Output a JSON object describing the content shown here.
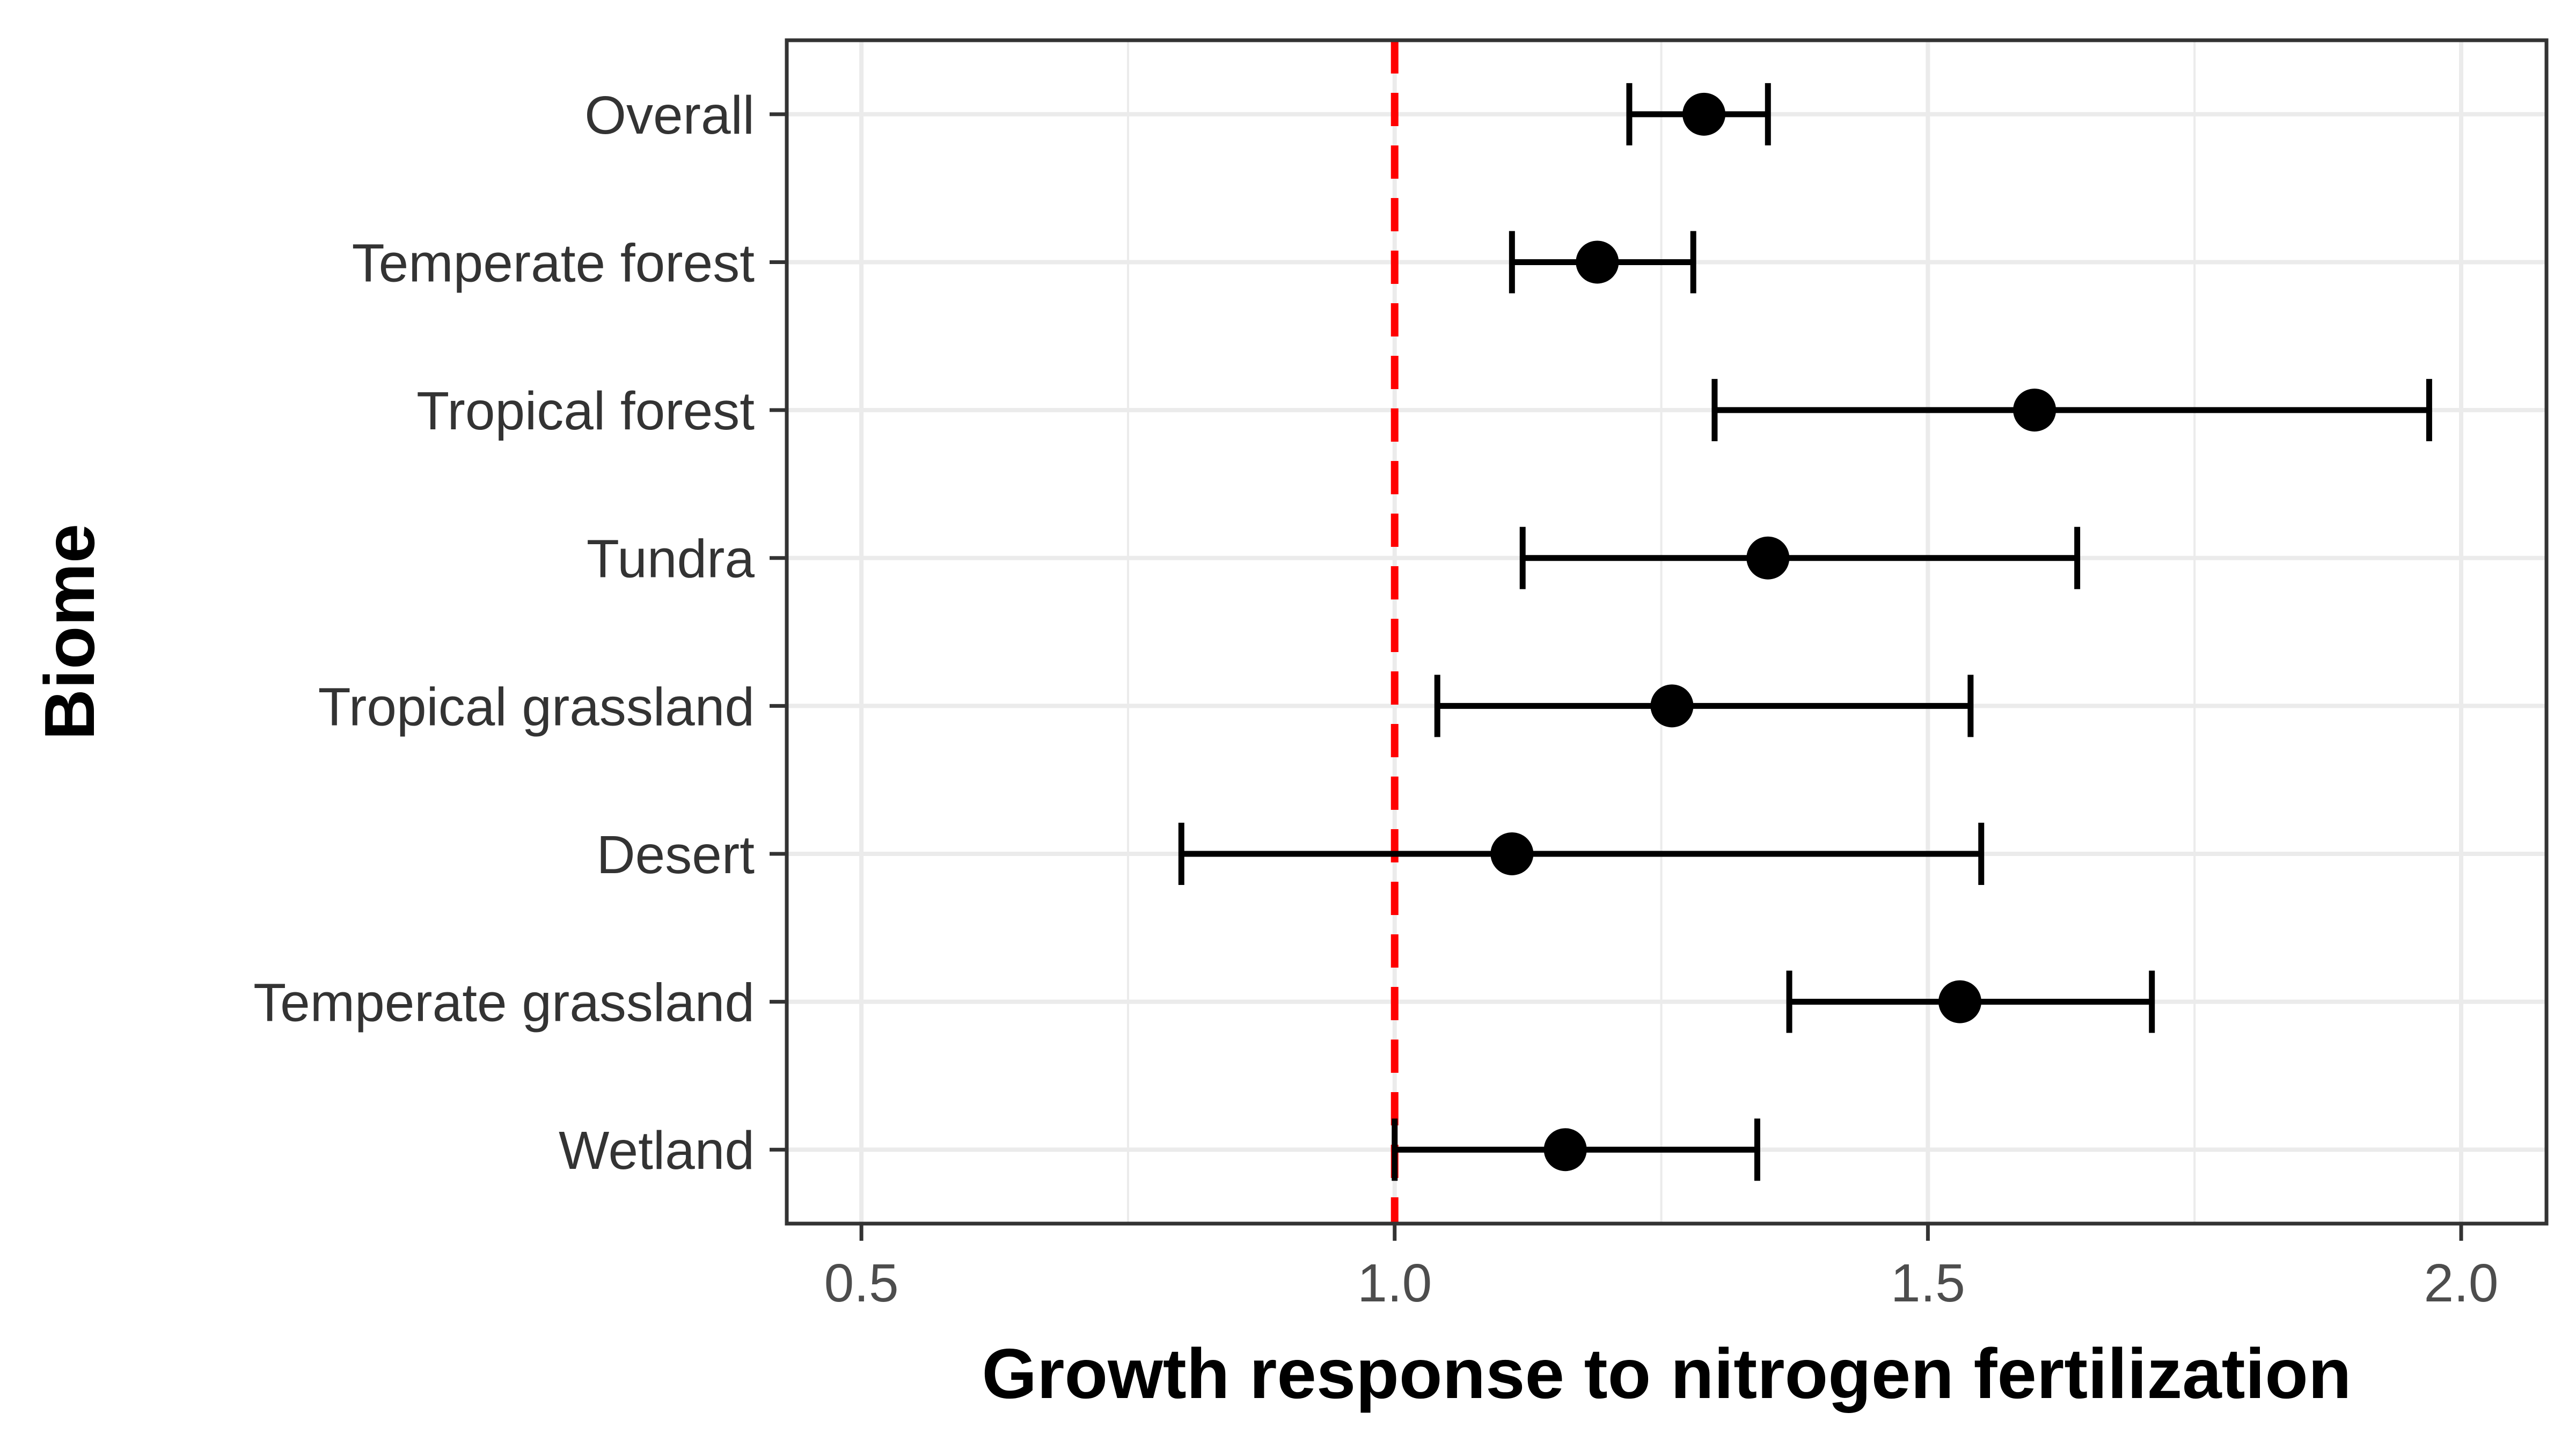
{
  "chart_data": {
    "type": "scatter",
    "subtype": "dot-and-whisker",
    "xlabel": "Growth response to nitrogen fertilization",
    "ylabel": "Biome",
    "xlim": [
      0.43,
      2.08
    ],
    "x_ticks": [
      "0.5",
      "1.0",
      "1.5",
      "2.0"
    ],
    "x_tick_values": [
      0.5,
      1.0,
      1.5,
      2.0
    ],
    "grid": true,
    "reference_line": {
      "x": 1.0,
      "color": "#ff0000",
      "style": "dashed"
    },
    "categories": [
      "Overall",
      "Temperate forest",
      "Tropical forest",
      "Tundra",
      "Tropical grassland",
      "Desert",
      "Temperate grassland",
      "Wetland"
    ],
    "points": [
      {
        "label": "Overall",
        "estimate": 1.29,
        "lower": 1.22,
        "upper": 1.35
      },
      {
        "label": "Temperate forest",
        "estimate": 1.19,
        "lower": 1.11,
        "upper": 1.28
      },
      {
        "label": "Tropical forest",
        "estimate": 1.6,
        "lower": 1.3,
        "upper": 1.97
      },
      {
        "label": "Tundra",
        "estimate": 1.35,
        "lower": 1.12,
        "upper": 1.64
      },
      {
        "label": "Tropical grassland",
        "estimate": 1.26,
        "lower": 1.04,
        "upper": 1.54
      },
      {
        "label": "Desert",
        "estimate": 1.11,
        "lower": 0.8,
        "upper": 1.55
      },
      {
        "label": "Temperate grassland",
        "estimate": 1.53,
        "lower": 1.37,
        "upper": 1.71
      },
      {
        "label": "Wetland",
        "estimate": 1.16,
        "lower": 1.0,
        "upper": 1.34
      }
    ],
    "colors": {
      "points": "#000000",
      "grid": "#ebebeb",
      "panel_border": "#333333"
    }
  }
}
